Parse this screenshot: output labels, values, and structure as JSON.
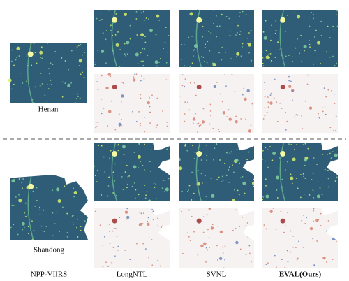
{
  "figure": {
    "regions": [
      {
        "label": "Henan"
      },
      {
        "label": "Shandong"
      }
    ],
    "columns": [
      "NPP-VIIRS",
      "LongNTL",
      "SVNL",
      "EVAL(Ours)"
    ]
  }
}
